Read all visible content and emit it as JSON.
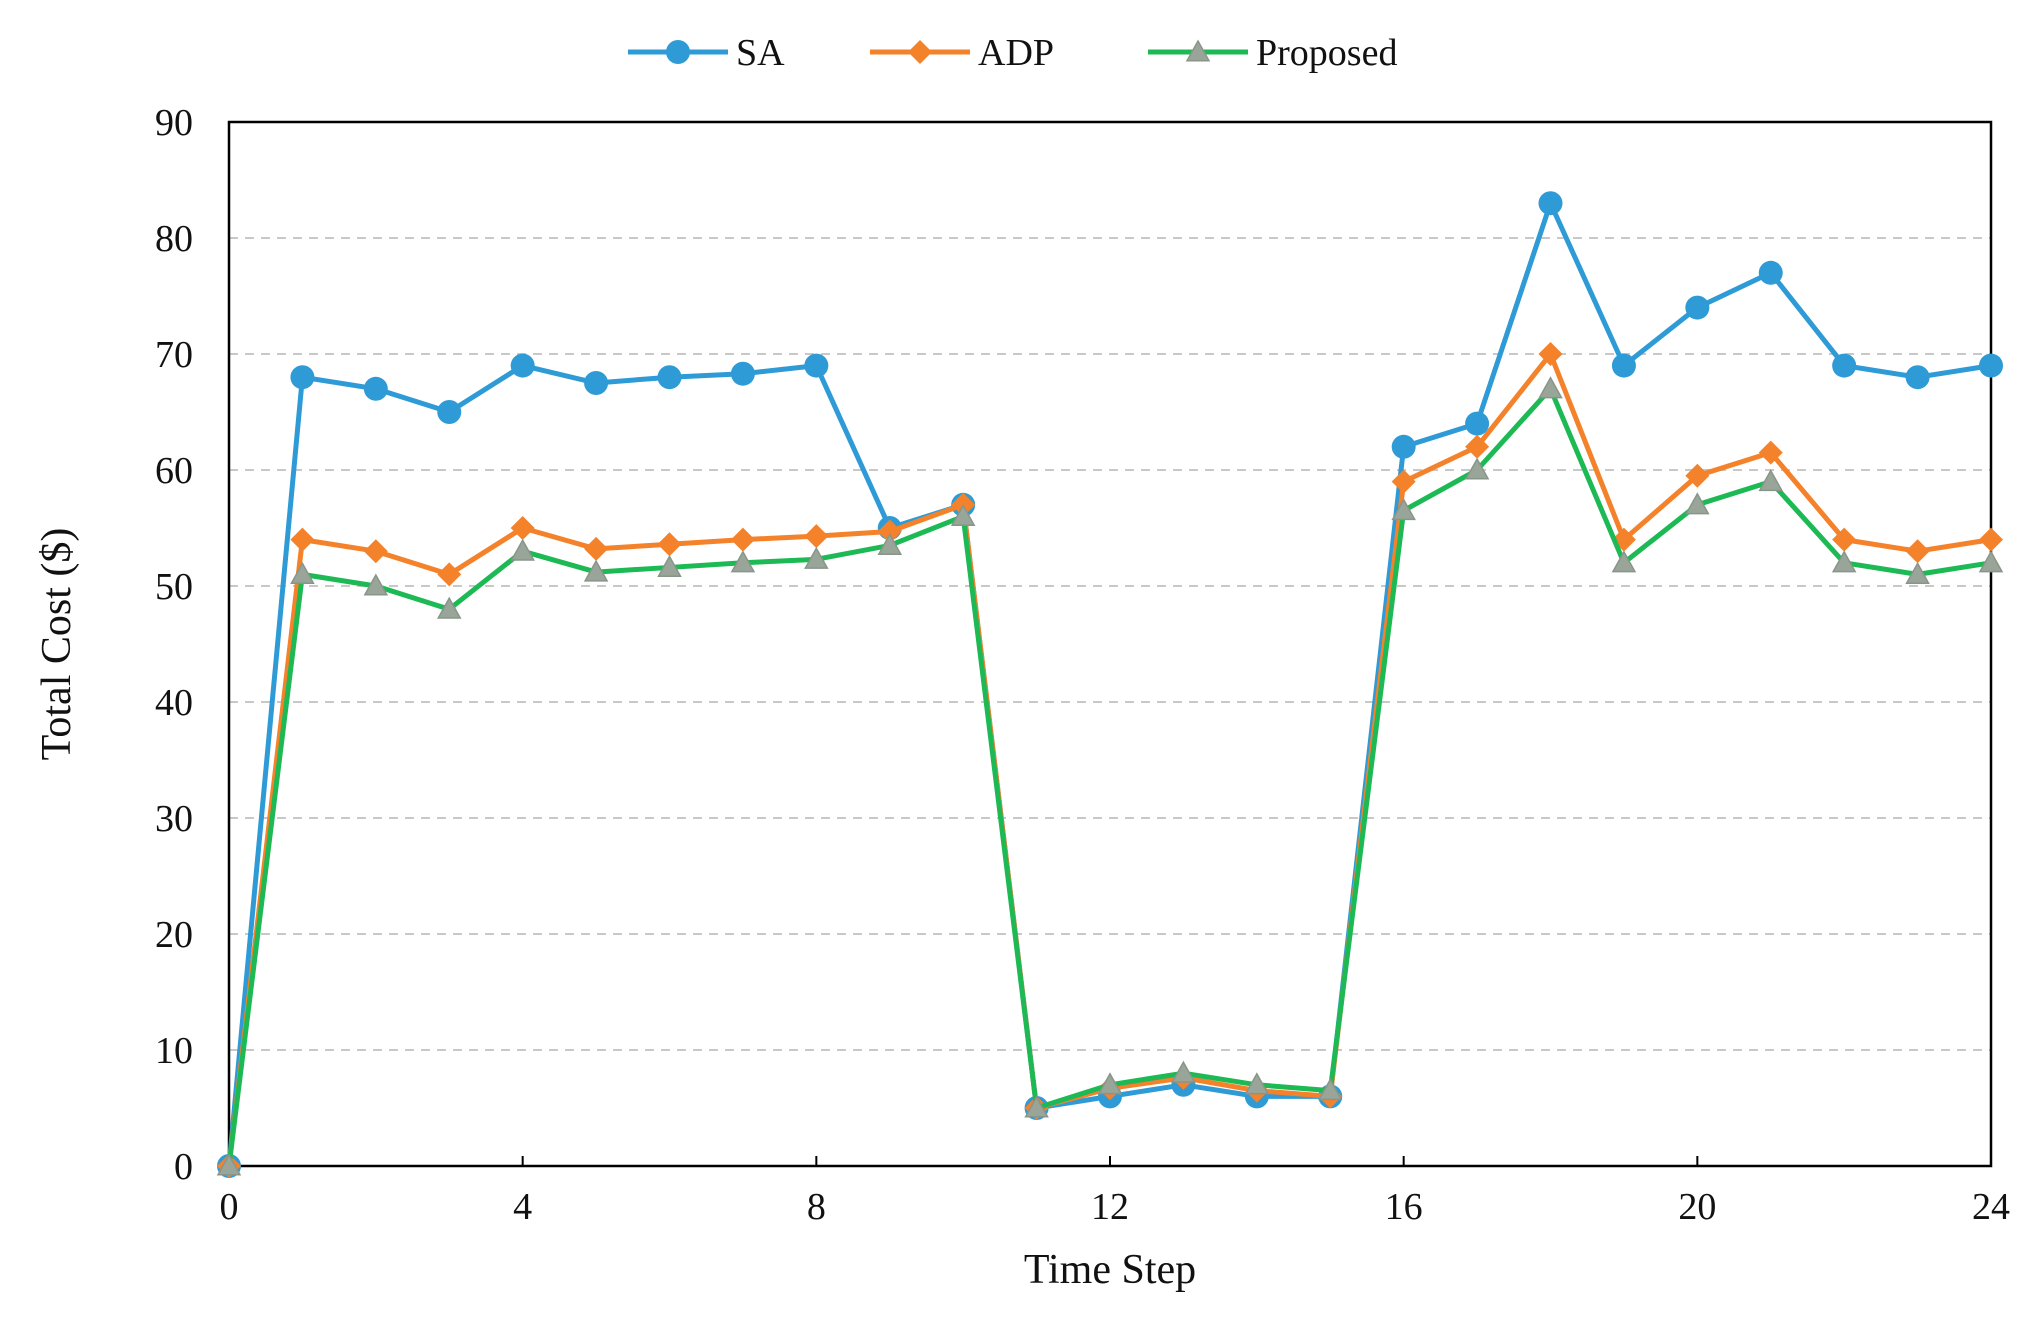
{
  "chart_data": {
    "type": "line",
    "title": "",
    "xlabel": "Time Step",
    "ylabel": "Total Cost ($)",
    "xlim": [
      0,
      24
    ],
    "ylim": [
      0,
      90
    ],
    "x_ticks": [
      0,
      4,
      8,
      12,
      16,
      20,
      24
    ],
    "x_tick_labels": [
      "0",
      "4",
      "8",
      "12",
      "16",
      "20",
      "24"
    ],
    "y_ticks": [
      0,
      10,
      20,
      30,
      40,
      50,
      60,
      70,
      80,
      90
    ],
    "y_tick_labels": [
      "0",
      "10",
      "20",
      "30",
      "40",
      "50",
      "60",
      "70",
      "80",
      "90"
    ],
    "grid": "horizontal dashed",
    "legend_position": "top-center",
    "x": [
      0,
      1,
      2,
      3,
      4,
      5,
      6,
      7,
      8,
      9,
      10,
      11,
      12,
      13,
      14,
      15,
      16,
      17,
      18,
      19,
      20,
      21,
      22,
      23,
      24
    ],
    "series": [
      {
        "name": "SA",
        "color": "#2e9bd6",
        "marker": "circle",
        "values": [
          0,
          68,
          67,
          65,
          69,
          67.5,
          68,
          68.3,
          69,
          55,
          57,
          5,
          6,
          7,
          6,
          6,
          62,
          64,
          83,
          69,
          74,
          77,
          69,
          68,
          69
        ]
      },
      {
        "name": "ADP",
        "color": "#f4822b",
        "marker": "diamond",
        "values": [
          0,
          54,
          53,
          51,
          55,
          53.2,
          53.6,
          54,
          54.3,
          54.7,
          57,
          5,
          6.7,
          7.6,
          6.5,
          6,
          59,
          62,
          70,
          54,
          59.5,
          61.5,
          54,
          53,
          54
        ]
      },
      {
        "name": "Proposed",
        "color": "#1db954",
        "marker": "triangle",
        "values": [
          0,
          51,
          50,
          48,
          53,
          51.2,
          51.6,
          52,
          52.3,
          53.5,
          56,
          5,
          7,
          8,
          7,
          6.5,
          56.5,
          60,
          67,
          52,
          57,
          59,
          52,
          51,
          52
        ]
      }
    ]
  }
}
